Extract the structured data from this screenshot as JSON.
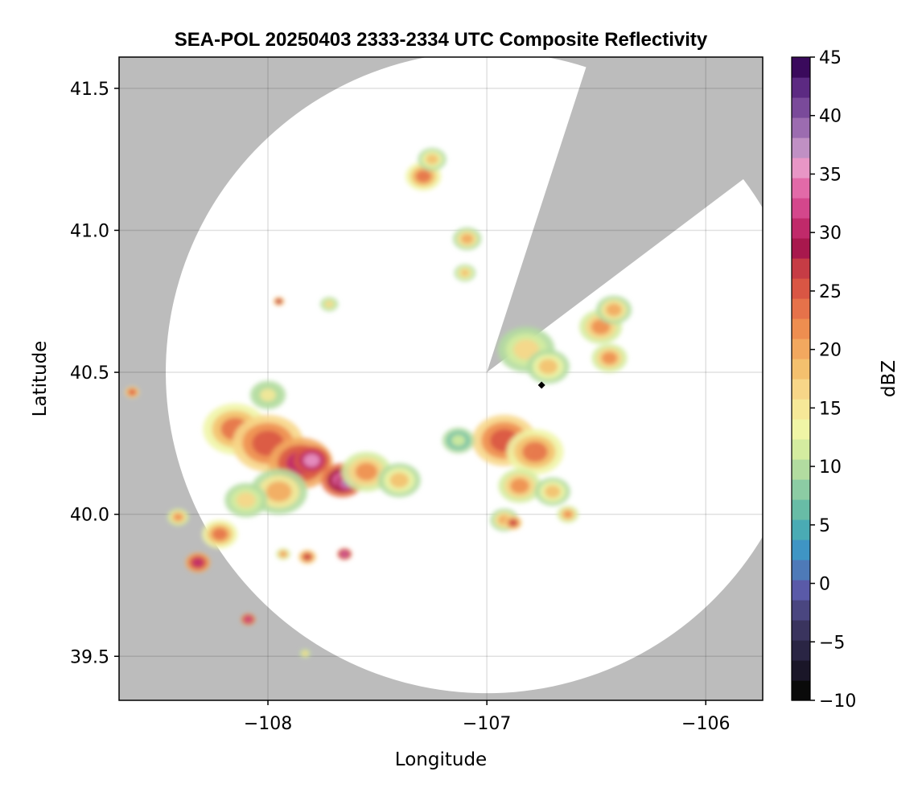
{
  "chart_data": {
    "type": "heatmap",
    "title": "SEA-POL 20250403 2333-2334 UTC Composite Reflectivity",
    "xlabel": "Longitude",
    "ylabel": "Latitude",
    "xlim": [
      -108.68,
      -105.74
    ],
    "ylim": [
      39.345,
      41.61
    ],
    "xticks": [
      -108,
      -107,
      -106
    ],
    "xtick_labels": [
      "−108",
      "−107",
      "−106"
    ],
    "yticks": [
      39.5,
      40.0,
      40.5,
      41.0,
      41.5
    ],
    "ytick_labels": [
      "39.5",
      "40.0",
      "40.5",
      "41.0",
      "41.5"
    ],
    "grid": true,
    "background_color": "#bcbcbc",
    "coverage_color": "#ffffff",
    "radar": {
      "center_lon": -107.0,
      "center_lat": 40.5,
      "range_deg_lat": 1.13,
      "blocked_sector_azimuth_deg": [
        18,
        53
      ]
    },
    "marker": {
      "lon": -106.75,
      "lat": 40.455,
      "shape": "diamond",
      "color": "#000000"
    },
    "colorbar": {
      "label": "dBZ",
      "min": -10,
      "max": 45,
      "step": 2.5,
      "ticks": [
        -10,
        -5,
        0,
        5,
        10,
        15,
        20,
        25,
        30,
        35,
        40,
        45
      ],
      "tick_labels": [
        "−10",
        "−5",
        "0",
        "5",
        "10",
        "15",
        "20",
        "25",
        "30",
        "35",
        "40",
        "45"
      ],
      "colors": [
        "#0a0a0a",
        "#1a1628",
        "#2a2544",
        "#3a345e",
        "#4a4680",
        "#5a5aa8",
        "#4e7ab8",
        "#3f95c4",
        "#4aabb4",
        "#68bca6",
        "#8ccca4",
        "#b2dca0",
        "#d4eca0",
        "#f0f5a6",
        "#f6e898",
        "#f7d688",
        "#f4c06e",
        "#f2a85f",
        "#ee8e50",
        "#e6724a",
        "#d95644",
        "#c63c45",
        "#a8184d",
        "#c02a6a",
        "#d4478c",
        "#e26aa8",
        "#e896c6",
        "#c090c4",
        "#9c6cb0",
        "#7a4a9a",
        "#5c2a82",
        "#3a0a5c"
      ]
    },
    "echoes": [
      {
        "lon": -108.15,
        "lat": 40.3,
        "r": 0.09,
        "dbz": 24
      },
      {
        "lon": -108.0,
        "lat": 40.25,
        "r": 0.1,
        "dbz": 26
      },
      {
        "lon": -107.85,
        "lat": 40.18,
        "r": 0.09,
        "dbz": 30
      },
      {
        "lon": -107.8,
        "lat": 40.19,
        "r": 0.05,
        "dbz": 36
      },
      {
        "lon": -107.66,
        "lat": 40.12,
        "r": 0.06,
        "dbz": 33
      },
      {
        "lon": -107.64,
        "lat": 40.11,
        "r": 0.03,
        "dbz": 39
      },
      {
        "lon": -107.55,
        "lat": 40.15,
        "r": 0.07,
        "dbz": 21
      },
      {
        "lon": -107.4,
        "lat": 40.12,
        "r": 0.06,
        "dbz": 18
      },
      {
        "lon": -107.95,
        "lat": 40.08,
        "r": 0.08,
        "dbz": 20
      },
      {
        "lon": -108.1,
        "lat": 40.05,
        "r": 0.06,
        "dbz": 17
      },
      {
        "lon": -108.0,
        "lat": 40.42,
        "r": 0.05,
        "dbz": 15
      },
      {
        "lon": -108.22,
        "lat": 39.93,
        "r": 0.05,
        "dbz": 24
      },
      {
        "lon": -108.32,
        "lat": 39.83,
        "r": 0.035,
        "dbz": 30
      },
      {
        "lon": -108.41,
        "lat": 39.99,
        "r": 0.03,
        "dbz": 22
      },
      {
        "lon": -108.62,
        "lat": 40.43,
        "r": 0.02,
        "dbz": 26
      },
      {
        "lon": -108.09,
        "lat": 39.63,
        "r": 0.02,
        "dbz": 32
      },
      {
        "lon": -107.65,
        "lat": 39.86,
        "r": 0.02,
        "dbz": 33
      },
      {
        "lon": -107.82,
        "lat": 39.85,
        "r": 0.025,
        "dbz": 27
      },
      {
        "lon": -107.93,
        "lat": 39.86,
        "r": 0.02,
        "dbz": 21
      },
      {
        "lon": -106.92,
        "lat": 40.26,
        "r": 0.09,
        "dbz": 26
      },
      {
        "lon": -106.78,
        "lat": 40.22,
        "r": 0.08,
        "dbz": 24
      },
      {
        "lon": -106.85,
        "lat": 40.1,
        "r": 0.06,
        "dbz": 22
      },
      {
        "lon": -106.92,
        "lat": 39.98,
        "r": 0.04,
        "dbz": 20
      },
      {
        "lon": -106.7,
        "lat": 40.08,
        "r": 0.05,
        "dbz": 19
      },
      {
        "lon": -107.13,
        "lat": 40.26,
        "r": 0.045,
        "dbz": 12
      },
      {
        "lon": -106.82,
        "lat": 40.58,
        "r": 0.08,
        "dbz": 17
      },
      {
        "lon": -106.72,
        "lat": 40.52,
        "r": 0.06,
        "dbz": 19
      },
      {
        "lon": -106.48,
        "lat": 40.66,
        "r": 0.06,
        "dbz": 21
      },
      {
        "lon": -106.42,
        "lat": 40.72,
        "r": 0.05,
        "dbz": 20
      },
      {
        "lon": -106.44,
        "lat": 40.55,
        "r": 0.05,
        "dbz": 22
      },
      {
        "lon": -107.29,
        "lat": 41.19,
        "r": 0.05,
        "dbz": 23
      },
      {
        "lon": -107.25,
        "lat": 41.25,
        "r": 0.04,
        "dbz": 19
      },
      {
        "lon": -107.09,
        "lat": 40.97,
        "r": 0.04,
        "dbz": 20
      },
      {
        "lon": -107.1,
        "lat": 40.85,
        "r": 0.03,
        "dbz": 18
      },
      {
        "lon": -107.72,
        "lat": 40.74,
        "r": 0.025,
        "dbz": 16
      },
      {
        "lon": -107.95,
        "lat": 40.75,
        "r": 0.015,
        "dbz": 28
      },
      {
        "lon": -106.63,
        "lat": 40.0,
        "r": 0.03,
        "dbz": 22
      },
      {
        "lon": -106.88,
        "lat": 39.97,
        "r": 0.025,
        "dbz": 27
      },
      {
        "lon": -107.83,
        "lat": 39.51,
        "r": 0.015,
        "dbz": 18
      }
    ]
  }
}
